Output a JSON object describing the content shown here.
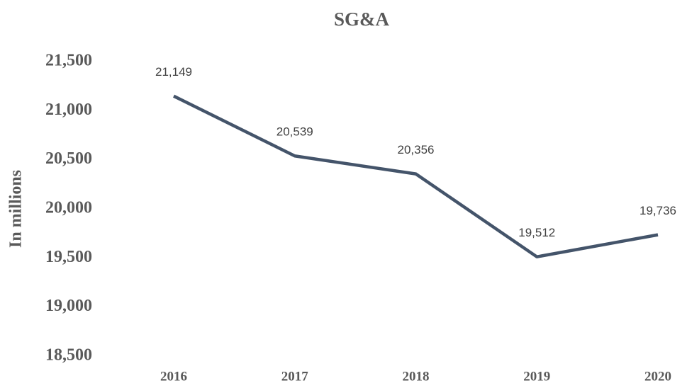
{
  "chart_data": {
    "type": "line",
    "title": "SG&A",
    "y_label": "In millions",
    "categories": [
      "2016",
      "2017",
      "2018",
      "2019",
      "2020"
    ],
    "series": [
      {
        "name": "SG&A",
        "color": "#44546a",
        "values": [
          21149,
          20539,
          20356,
          19512,
          19736
        ],
        "value_labels": [
          "21,149",
          "20,539",
          "20,356",
          "19,512",
          "19,736"
        ]
      }
    ],
    "ylim": [
      18500,
      21500
    ],
    "yticks": [
      {
        "value": 18500,
        "label": "18,500"
      },
      {
        "value": 19000,
        "label": "19,000"
      },
      {
        "value": 19500,
        "label": "19,500"
      },
      {
        "value": 20000,
        "label": "20,000"
      },
      {
        "value": 20500,
        "label": "20,500"
      },
      {
        "value": 21000,
        "label": "21,000"
      },
      {
        "value": 21500,
        "label": "21,500"
      }
    ],
    "grid": false
  }
}
